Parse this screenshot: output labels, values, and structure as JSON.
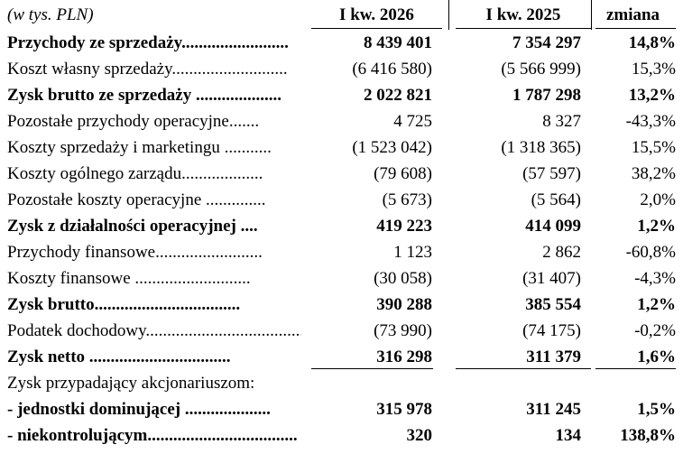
{
  "header": {
    "unit_note": "(w tys. PLN)",
    "col_current": "I kw. 2026",
    "col_previous": "I kw. 2025",
    "col_change": "zmiana"
  },
  "rows": [
    {
      "label": "Przychody ze sprzedaży.........................",
      "current": "8 439 401",
      "previous": "7 354 297",
      "change": "14,8%",
      "bold": true
    },
    {
      "label": "Koszt własny sprzedaży...........................",
      "current": "(6 416 580)",
      "previous": "(5 566 999)",
      "change": "15,3%",
      "bold": false
    },
    {
      "label": "Zysk brutto ze sprzedaży ....................",
      "current": "2 022 821",
      "previous": "1 787 298",
      "change": "13,2%",
      "bold": true
    },
    {
      "label": "Pozostałe przychody operacyjne.......",
      "current": "4 725",
      "previous": "8 327",
      "change": "-43,3%",
      "bold": false
    },
    {
      "label": "Koszty sprzedaży i marketingu ...........",
      "current": "(1 523 042)",
      "previous": "(1 318 365)",
      "change": "15,5%",
      "bold": false
    },
    {
      "label": "Koszty ogólnego zarządu...................",
      "current": "(79 608)",
      "previous": "(57 597)",
      "change": "38,2%",
      "bold": false
    },
    {
      "label": "Pozostałe koszty operacyjne ..............",
      "current": "(5 673)",
      "previous": "(5 564)",
      "change": "2,0%",
      "bold": false
    },
    {
      "label": "Zysk z działalności operacyjnej ....",
      "current": "419 223",
      "previous": "414 099",
      "change": "1,2%",
      "bold": true
    },
    {
      "label": "Przychody finansowe.........................",
      "current": "1 123",
      "previous": "2 862",
      "change": "-60,8%",
      "bold": false
    },
    {
      "label": "Koszty finansowe ...........................",
      "current": "(30 058)",
      "previous": "(31 407)",
      "change": "-4,3%",
      "bold": false
    },
    {
      "label": "Zysk brutto..................................",
      "current": "390 288",
      "previous": "385 554",
      "change": "1,2%",
      "bold": true
    },
    {
      "label": "Podatek dochodowy.......................................",
      "current": "(73 990)",
      "previous": "(74 175)",
      "change": "-0,2%",
      "bold": false
    },
    {
      "label": "Zysk netto .................................",
      "current": "316 298",
      "previous": "311 379",
      "change": "1,6%",
      "bold": true
    }
  ],
  "attribution": {
    "title": "Zysk przypadający akcjonariuszom:",
    "rows": [
      {
        "label": "- jednostki dominującej ....................",
        "current": "315 978",
        "previous": "311 245",
        "change": "1,5%",
        "bold": true
      },
      {
        "label": "- niekontrolującym...................................",
        "current": "320",
        "previous": "134",
        "change": "138,8%",
        "bold": true
      }
    ]
  }
}
